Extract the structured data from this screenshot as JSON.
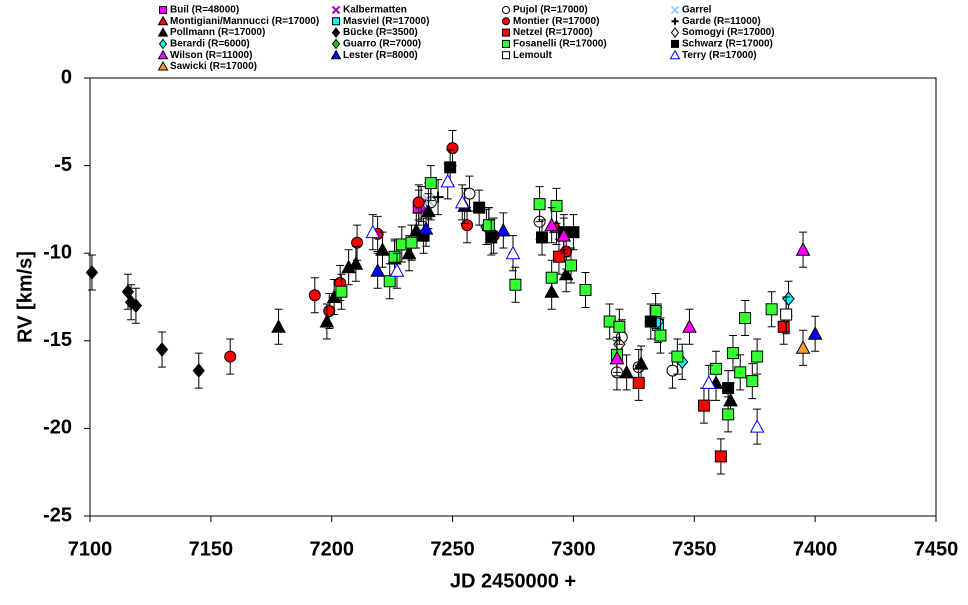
{
  "chart_data": {
    "type": "scatter",
    "x_label": "JD 2450000 +",
    "y_label": "RV [km/s]",
    "xlim": [
      7100,
      7450
    ],
    "xticks": [
      7100,
      7150,
      7200,
      7250,
      7300,
      7350,
      7400,
      7450
    ],
    "ylim": [
      -25,
      0
    ],
    "yticks": [
      0,
      -5,
      -10,
      -15,
      -20,
      -25
    ],
    "series": [
      {
        "name": "Buil (R=48000)",
        "color": "#ff00ff",
        "marker": "square",
        "filled": true,
        "x": [
          7236
        ],
        "values": [
          -7.4
        ],
        "errors": [
          1
        ]
      },
      {
        "name": "Kalbermatten",
        "color": "#9900cc",
        "marker": "x",
        "filled": true,
        "x": [
          7237
        ],
        "values": [
          -7.2
        ],
        "errors": [
          1
        ]
      },
      {
        "name": "Pujol (R=17000)",
        "color": "#000000",
        "marker": "circle",
        "filled": false,
        "x": [
          7241,
          7257,
          7286,
          7320,
          7318,
          7327,
          7341
        ],
        "values": [
          -7.1,
          -6.6,
          -8.2,
          -14.8,
          -16.8,
          -16.5,
          -16.7
        ],
        "errors": [
          1,
          1,
          1,
          1,
          1,
          1,
          1
        ]
      },
      {
        "name": "Garrel",
        "color": "#99ccff",
        "marker": "x",
        "filled": true,
        "x": [
          7240
        ],
        "values": [
          -7.0
        ],
        "errors": [
          1
        ]
      },
      {
        "name": "Montigiani/Mannucci (R=17000)",
        "color": "#ff0000",
        "marker": "triangle",
        "filled": true,
        "x": [
          7293
        ],
        "values": [
          -8.5
        ],
        "errors": [
          1
        ]
      },
      {
        "name": "Masviel (R=17000)",
        "color": "#00ffff",
        "marker": "square",
        "filled": true,
        "x": [
          7335
        ],
        "values": [
          -14.1
        ],
        "errors": [
          1
        ]
      },
      {
        "name": "Montier (R=17000)",
        "color": "#ff0000",
        "marker": "circle",
        "filled": true,
        "x": [
          7158,
          7193,
          7199,
          7203.5,
          7210.5,
          7219,
          7236,
          7250,
          7256,
          7267,
          7297
        ],
        "values": [
          -15.9,
          -12.4,
          -13.3,
          -11.7,
          -9.4,
          -8.9,
          -7.1,
          -4.0,
          -8.4,
          -9.0,
          -9.9
        ],
        "errors": [
          1,
          1,
          1,
          1,
          1,
          1,
          1,
          1,
          1,
          1,
          1
        ]
      },
      {
        "name": "Garde (R=11000)",
        "color": "#000000",
        "marker": "plus",
        "filled": true,
        "x": [
          7244
        ],
        "values": [
          -6.8
        ],
        "errors": [
          1
        ]
      },
      {
        "name": "Pollmann (R=17000)",
        "color": "#000000",
        "marker": "triangle",
        "filled": true,
        "x": [
          7178,
          7198,
          7201,
          7207,
          7210,
          7221,
          7226,
          7232,
          7235,
          7240,
          7255,
          7265,
          7291,
          7297,
          7322,
          7328,
          7359,
          7365
        ],
        "values": [
          -14.2,
          -13.9,
          -12.5,
          -10.8,
          -10.6,
          -9.8,
          -10.3,
          -10.0,
          -8.7,
          -7.6,
          -7.3,
          -8.4,
          -12.2,
          -11.2,
          -16.8,
          -16.3,
          -17.4,
          -18.4
        ],
        "errors": [
          1,
          1,
          1,
          1,
          1,
          1,
          1,
          1,
          1,
          1,
          1,
          1,
          1,
          1,
          1,
          1,
          1,
          1
        ]
      },
      {
        "name": "Bücke (R=3500)",
        "color": "#000000",
        "marker": "diamond",
        "filled": true,
        "x": [
          7100.8,
          7115.7,
          7117,
          7119,
          7129.8,
          7145
        ],
        "values": [
          -11.1,
          -12.2,
          -12.8,
          -13.0,
          -15.5,
          -16.7
        ],
        "errors": [
          1,
          1,
          1,
          1,
          1,
          1
        ]
      },
      {
        "name": "Netzel (R=17000)",
        "color": "#ff0000",
        "marker": "square",
        "filled": true,
        "x": [
          7294,
          7327,
          7354,
          7361,
          7387
        ],
        "values": [
          -10.2,
          -17.4,
          -18.7,
          -21.6,
          -14.2
        ],
        "errors": [
          1,
          1,
          1,
          1,
          1
        ]
      },
      {
        "name": "Somogyi (R=17000)",
        "color": "#000000",
        "marker": "diamond",
        "filled": false,
        "x": [
          7319,
          7388
        ],
        "values": [
          -15.2,
          -13.6
        ],
        "errors": [
          1,
          1
        ]
      },
      {
        "name": "Berardi (R=6000)",
        "color": "#00ffff",
        "marker": "diamond",
        "filled": true,
        "x": [
          7335,
          7345,
          7389
        ],
        "values": [
          -13.9,
          -16.2,
          -12.6
        ],
        "errors": [
          1,
          1,
          1
        ]
      },
      {
        "name": "Guarro (R=7000)",
        "color": "#00cc00",
        "marker": "diamond",
        "filled": true,
        "x": [
          7264
        ],
        "values": [
          -8.5
        ],
        "errors": [
          1
        ]
      },
      {
        "name": "Fosanelli (R=17000)",
        "color": "#33ff33",
        "marker": "square",
        "filled": true,
        "x": [
          7204,
          7224,
          7226,
          7229,
          7233,
          7241,
          7265,
          7276,
          7286,
          7291,
          7293,
          7299,
          7305,
          7315,
          7318,
          7319,
          7334,
          7336,
          7343,
          7359,
          7364,
          7366,
          7369,
          7371,
          7374,
          7376,
          7382
        ],
        "values": [
          -12.2,
          -11.6,
          -10.2,
          -9.5,
          -9.4,
          -6.0,
          -8.4,
          -11.8,
          -7.2,
          -11.4,
          -7.3,
          -10.7,
          -12.1,
          -13.9,
          -15.8,
          -14.2,
          -13.3,
          -14.7,
          -15.9,
          -16.6,
          -19.2,
          -15.7,
          -16.8,
          -13.7,
          -17.3,
          -15.9,
          -13.2
        ],
        "errors": [
          1,
          1,
          1,
          1,
          1,
          1,
          1,
          1,
          1,
          1,
          1,
          1,
          1,
          1,
          1,
          1,
          1,
          1,
          1,
          1,
          1,
          1,
          1,
          1,
          1,
          1,
          1
        ]
      },
      {
        "name": "Schwarz (R=17000)",
        "color": "#000000",
        "marker": "square",
        "filled": true,
        "x": [
          7238,
          7249,
          7261,
          7266,
          7287,
          7296,
          7300,
          7332,
          7364
        ],
        "values": [
          -9.0,
          -5.1,
          -7.4,
          -9.1,
          -9.1,
          -8.8,
          -8.8,
          -13.9,
          -17.7
        ],
        "errors": [
          1,
          1,
          1,
          1,
          1,
          1,
          1,
          1,
          1
        ]
      },
      {
        "name": "Wilson (R=11000)",
        "color": "#ff00ff",
        "marker": "triangle",
        "filled": true,
        "x": [
          7291,
          7296,
          7318,
          7348,
          7395
        ],
        "values": [
          -8.4,
          -9.0,
          -16.0,
          -14.2,
          -9.8
        ],
        "errors": [
          1,
          1,
          1,
          1,
          1
        ]
      },
      {
        "name": "Lester (R=8000)",
        "color": "#0000ff",
        "marker": "triangle",
        "filled": true,
        "x": [
          7219,
          7239,
          7271,
          7400
        ],
        "values": [
          -11.0,
          -8.6,
          -8.7,
          -14.6
        ],
        "errors": [
          1,
          1,
          1,
          1
        ]
      },
      {
        "name": "Lemoult",
        "color": "#000000",
        "marker": "square",
        "filled": false,
        "x": [
          7388
        ],
        "values": [
          -13.5
        ],
        "errors": [
          1
        ]
      },
      {
        "name": "Terry (R=17000)",
        "color": "#0000ff",
        "marker": "triangle",
        "filled": false,
        "x": [
          7217,
          7227,
          7248,
          7254,
          7275,
          7356,
          7376
        ],
        "values": [
          -8.8,
          -11.0,
          -5.9,
          -7.1,
          -10.0,
          -17.4,
          -19.9
        ],
        "errors": [
          1,
          1,
          1,
          1,
          1,
          1,
          1
        ]
      },
      {
        "name": "Sawicki (R=17000)",
        "color": "#ff9933",
        "marker": "triangle",
        "filled": true,
        "x": [
          7395
        ],
        "values": [
          -15.4
        ],
        "errors": [
          1
        ]
      }
    ]
  }
}
